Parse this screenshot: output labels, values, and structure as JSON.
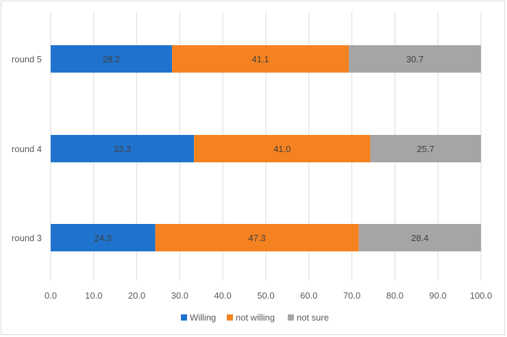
{
  "chart_data": {
    "type": "bar",
    "orientation": "horizontal",
    "stacked": true,
    "categories": [
      "round 5",
      "round 4",
      "round 3"
    ],
    "series": [
      {
        "name": "Willing",
        "color": "#1f73cc",
        "values": [
          28.2,
          33.3,
          24.3
        ]
      },
      {
        "name": "not willing",
        "color": "#f58220",
        "values": [
          41.1,
          41.0,
          47.3
        ]
      },
      {
        "name": "not sure",
        "color": "#a5a5a5",
        "values": [
          30.7,
          25.7,
          28.4
        ]
      }
    ],
    "data_labels": [
      [
        "28.2",
        "33.3",
        "24.3"
      ],
      [
        "41.1",
        "41.0",
        "47.3"
      ],
      [
        "30.7",
        "25.7",
        "28.4"
      ]
    ],
    "x_ticks": [
      "0.0",
      "10.0",
      "20.0",
      "30.0",
      "40.0",
      "50.0",
      "60.0",
      "70.0",
      "80.0",
      "90.0",
      "100.0"
    ],
    "xlim": [
      0,
      100
    ],
    "grid": "vertical",
    "legend_position": "bottom"
  }
}
